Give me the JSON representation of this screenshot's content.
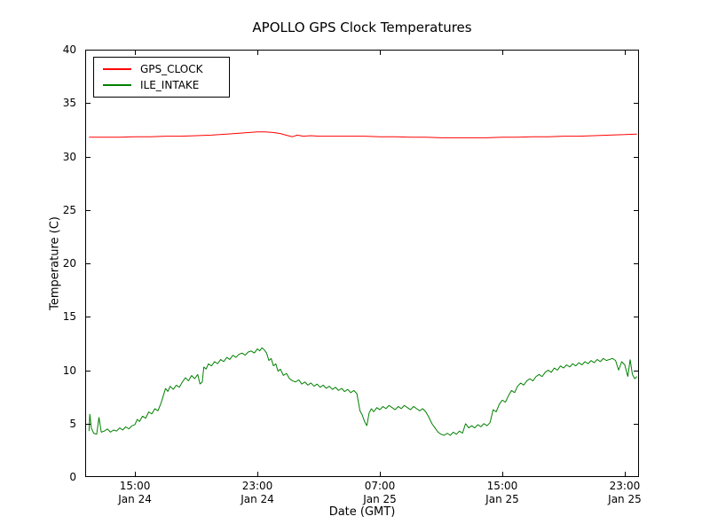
{
  "legend": {
    "items": [
      {
        "label": "GPS_CLOCK",
        "color": "#ff0000"
      },
      {
        "label": "ILE_INTAKE",
        "color": "#008000"
      }
    ]
  },
  "chart_data": {
    "type": "line",
    "title": "APOLLO GPS Clock Temperatures",
    "xlabel": "Date (GMT)",
    "ylabel": "Temperature (C)",
    "x_unit": "hours since Jan 24 00:00 GMT",
    "xlim": [
      11.75,
      47.93
    ],
    "ylim": [
      0,
      40
    ],
    "grid": false,
    "legend_position": "upper left",
    "yticks": [
      0,
      5,
      10,
      15,
      20,
      25,
      30,
      35,
      40
    ],
    "xticks": [
      {
        "x": 15,
        "time": "15:00",
        "date": "Jan 24"
      },
      {
        "x": 23,
        "time": "23:00",
        "date": "Jan 24"
      },
      {
        "x": 31,
        "time": "07:00",
        "date": "Jan 25"
      },
      {
        "x": 39,
        "time": "15:00",
        "date": "Jan 25"
      },
      {
        "x": 47,
        "time": "23:00",
        "date": "Jan 25"
      }
    ],
    "series": [
      {
        "name": "GPS_CLOCK",
        "color": "#ff0000",
        "x": [
          12.0,
          13.0,
          14.0,
          15.0,
          16.0,
          17.0,
          18.0,
          19.0,
          20.0,
          21.0,
          22.0,
          22.5,
          23.0,
          23.5,
          24.0,
          24.5,
          25.0,
          25.3,
          25.6,
          26.0,
          26.5,
          27.0,
          28.0,
          29.0,
          30.0,
          31.0,
          32.0,
          33.0,
          34.0,
          35.0,
          36.0,
          37.0,
          38.0,
          39.0,
          40.0,
          41.0,
          42.0,
          43.0,
          44.0,
          45.0,
          46.0,
          47.0,
          47.8
        ],
        "values": [
          31.8,
          31.8,
          31.8,
          31.85,
          31.85,
          31.9,
          31.9,
          31.95,
          32.0,
          32.1,
          32.2,
          32.25,
          32.3,
          32.3,
          32.25,
          32.15,
          31.95,
          31.85,
          32.0,
          31.9,
          31.95,
          31.9,
          31.9,
          31.9,
          31.9,
          31.85,
          31.85,
          31.8,
          31.8,
          31.75,
          31.75,
          31.75,
          31.75,
          31.8,
          31.8,
          31.85,
          31.85,
          31.9,
          31.9,
          31.95,
          32.0,
          32.05,
          32.1
        ]
      },
      {
        "name": "ILE_INTAKE",
        "color": "#008000",
        "x": [
          12.0,
          12.05,
          12.15,
          12.3,
          12.5,
          12.65,
          12.8,
          13.0,
          13.2,
          13.4,
          13.6,
          13.8,
          14.0,
          14.2,
          14.4,
          14.6,
          14.8,
          15.0,
          15.15,
          15.3,
          15.5,
          15.7,
          15.9,
          16.1,
          16.3,
          16.5,
          16.7,
          16.85,
          17.0,
          17.15,
          17.3,
          17.5,
          17.7,
          17.9,
          18.1,
          18.3,
          18.5,
          18.7,
          18.9,
          19.1,
          19.25,
          19.4,
          19.5,
          19.65,
          19.8,
          20.0,
          20.2,
          20.4,
          20.6,
          20.8,
          21.0,
          21.2,
          21.4,
          21.6,
          21.8,
          22.0,
          22.2,
          22.4,
          22.6,
          22.8,
          23.0,
          23.15,
          23.3,
          23.45,
          23.6,
          23.75,
          23.9,
          24.05,
          24.2,
          24.35,
          24.5,
          24.7,
          24.9,
          25.1,
          25.3,
          25.5,
          25.7,
          25.9,
          26.1,
          26.3,
          26.5,
          26.7,
          26.9,
          27.1,
          27.3,
          27.5,
          27.7,
          27.9,
          28.1,
          28.3,
          28.5,
          28.7,
          28.9,
          29.1,
          29.3,
          29.5,
          29.7,
          29.85,
          30.0,
          30.15,
          30.3,
          30.45,
          30.6,
          30.8,
          31.0,
          31.2,
          31.4,
          31.6,
          31.8,
          32.0,
          32.2,
          32.4,
          32.6,
          32.8,
          33.0,
          33.2,
          33.4,
          33.6,
          33.8,
          34.0,
          34.2,
          34.4,
          34.6,
          34.8,
          35.0,
          35.2,
          35.4,
          35.6,
          35.8,
          36.0,
          36.2,
          36.4,
          36.6,
          36.8,
          37.0,
          37.2,
          37.4,
          37.6,
          37.8,
          38.0,
          38.2,
          38.4,
          38.6,
          38.8,
          39.0,
          39.2,
          39.4,
          39.6,
          39.8,
          40.0,
          40.2,
          40.4,
          40.6,
          40.8,
          41.0,
          41.2,
          41.4,
          41.6,
          41.8,
          42.0,
          42.2,
          42.4,
          42.6,
          42.8,
          43.0,
          43.2,
          43.4,
          43.6,
          43.8,
          44.0,
          44.2,
          44.4,
          44.6,
          44.8,
          45.0,
          45.2,
          45.4,
          45.6,
          45.8,
          46.0,
          46.2,
          46.4,
          46.6,
          46.8,
          47.0,
          47.2,
          47.35,
          47.5,
          47.65,
          47.8
        ],
        "values": [
          4.3,
          5.9,
          4.6,
          4.1,
          4.0,
          5.6,
          4.2,
          4.3,
          4.5,
          4.2,
          4.4,
          4.3,
          4.6,
          4.4,
          4.7,
          4.5,
          4.8,
          4.9,
          5.4,
          5.2,
          5.7,
          5.5,
          6.1,
          5.9,
          6.4,
          6.2,
          6.9,
          7.6,
          8.3,
          8.0,
          8.5,
          8.2,
          8.6,
          8.4,
          8.9,
          9.3,
          9.0,
          9.5,
          9.2,
          9.6,
          8.7,
          8.9,
          10.3,
          10.1,
          10.6,
          10.4,
          10.8,
          10.6,
          11.0,
          10.8,
          11.2,
          11.0,
          11.4,
          11.2,
          11.5,
          11.6,
          11.4,
          11.7,
          11.8,
          11.6,
          12.0,
          11.8,
          12.1,
          11.9,
          11.6,
          10.9,
          11.1,
          10.4,
          10.6,
          9.9,
          10.1,
          9.5,
          9.7,
          9.2,
          9.0,
          8.9,
          9.1,
          8.7,
          8.9,
          8.6,
          8.8,
          8.5,
          8.7,
          8.4,
          8.6,
          8.3,
          8.5,
          8.2,
          8.4,
          8.1,
          8.3,
          8.0,
          8.2,
          7.9,
          8.1,
          7.8,
          6.2,
          5.8,
          5.2,
          4.8,
          6.0,
          6.4,
          6.1,
          6.5,
          6.3,
          6.6,
          6.4,
          6.7,
          6.5,
          6.3,
          6.6,
          6.4,
          6.7,
          6.5,
          6.3,
          6.6,
          6.4,
          6.2,
          6.4,
          6.1,
          5.6,
          5.0,
          4.6,
          4.2,
          4.0,
          3.9,
          4.1,
          3.9,
          4.2,
          4.0,
          4.3,
          4.1,
          5.0,
          4.6,
          4.8,
          4.6,
          4.9,
          4.7,
          5.0,
          4.8,
          5.1,
          6.3,
          6.1,
          6.8,
          7.2,
          7.0,
          7.6,
          8.1,
          7.9,
          8.5,
          8.8,
          8.6,
          9.0,
          9.2,
          9.0,
          9.4,
          9.6,
          9.4,
          9.8,
          10.0,
          9.8,
          10.2,
          10.0,
          10.4,
          10.2,
          10.5,
          10.3,
          10.6,
          10.4,
          10.7,
          10.5,
          10.8,
          10.6,
          10.9,
          10.7,
          11.0,
          10.8,
          11.1,
          10.9,
          11.0,
          11.1,
          10.9,
          10.0,
          10.8,
          10.5,
          9.4,
          11.0,
          9.6,
          9.2,
          9.4
        ]
      }
    ]
  }
}
